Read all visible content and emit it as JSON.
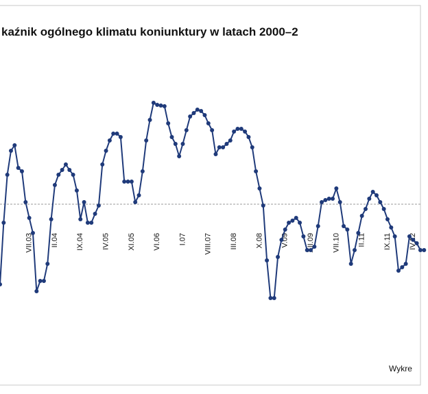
{
  "chart_data": {
    "type": "line",
    "title": "kaźnik ogólnego klimatu koniunktury w latach 2000–2",
    "source": "Wykre",
    "categories": [
      null,
      null,
      null,
      null,
      null,
      null,
      null,
      null,
      "VII.03",
      null,
      null,
      null,
      null,
      null,
      null,
      "II.04",
      null,
      null,
      null,
      null,
      null,
      null,
      "IX.04",
      null,
      null,
      null,
      null,
      null,
      null,
      "IV.05",
      null,
      null,
      null,
      null,
      null,
      null,
      "XI.05",
      null,
      null,
      null,
      null,
      null,
      null,
      "VI.06",
      null,
      null,
      null,
      null,
      null,
      null,
      "I.07",
      null,
      null,
      null,
      null,
      null,
      null,
      "VIII.07",
      null,
      null,
      null,
      null,
      null,
      null,
      "III.08",
      null,
      null,
      null,
      null,
      null,
      null,
      "X.08",
      null,
      null,
      null,
      null,
      null,
      null,
      "V.09",
      null,
      null,
      null,
      null,
      null,
      null,
      "XII.09",
      null,
      null,
      null,
      null,
      null,
      null,
      "VII.10",
      null,
      null,
      null,
      null,
      null,
      null,
      "II.11",
      null,
      null,
      null,
      null,
      null,
      null,
      "IX.11",
      null,
      null,
      null,
      null,
      null,
      null,
      "IV.12",
      null,
      null,
      null
    ],
    "values": [
      -11.7,
      -2.7,
      4.3,
      7.8,
      8.6,
      5.3,
      4.8,
      0.3,
      -2,
      -4.2,
      -12.7,
      -11.2,
      -11.2,
      -8.7,
      -2.2,
      2.8,
      4.3,
      5,
      5.8,
      5,
      4.3,
      2,
      -2.2,
      0.3,
      -2.7,
      -2.7,
      -1.4,
      -0.2,
      5.8,
      7.8,
      9.3,
      10.3,
      10.3,
      9.8,
      3.3,
      3.3,
      3.3,
      0.3,
      1.3,
      4.8,
      9.3,
      12.3,
      14.8,
      14.5,
      14.4,
      14.3,
      11.8,
      9.8,
      8.8,
      7,
      8.8,
      10.8,
      12.8,
      13.3,
      13.8,
      13.6,
      13,
      11.8,
      10.8,
      7.3,
      8.3,
      8.3,
      8.8,
      9.3,
      10.6,
      11,
      11,
      10.6,
      9.8,
      8.3,
      4.8,
      2.3,
      -0.2,
      -8.2,
      -13.7,
      -13.7,
      -7.7,
      -5.2,
      -3.7,
      -2.7,
      -2.4,
      -2,
      -2.7,
      -4.7,
      -6.7,
      -6.7,
      -6.2,
      -3.2,
      0.3,
      0.6,
      0.8,
      0.8,
      2.3,
      0.3,
      -3.2,
      -3.7,
      -8.7,
      -6.7,
      -4.2,
      -1.7,
      -0.7,
      0.8,
      1.8,
      1.3,
      0.3,
      -0.7,
      -2.2,
      -3.4,
      -4.7,
      -9.7,
      -9.2,
      -8.7,
      -4.7,
      -5.2,
      -5.7,
      -6.7,
      -6.7
    ],
    "color": "#1f3a7a",
    "reference_line": 0,
    "ylim": [
      -20,
      20
    ]
  }
}
